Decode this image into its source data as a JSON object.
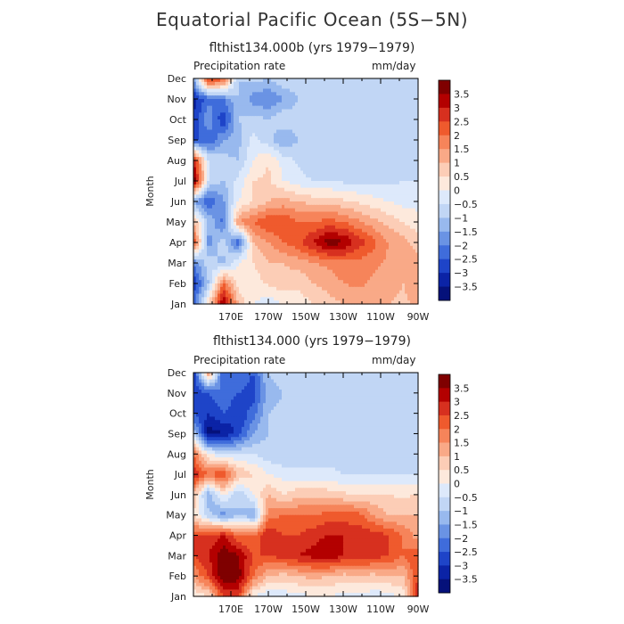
{
  "title": "Equatorial Pacific Ocean (5S−5N)",
  "colorbar": {
    "levels": [
      "3.5",
      "3",
      "2.5",
      "2",
      "1.5",
      "1",
      "0.5",
      "0",
      "−0.5",
      "−1",
      "−1.5",
      "−2",
      "−2.5",
      "−3",
      "−3.5"
    ],
    "colors": [
      "#7f0000",
      "#b30000",
      "#d7301f",
      "#ef5a2d",
      "#f6845a",
      "#f9a987",
      "#fccdb6",
      "#fde9dc",
      "#dde9fb",
      "#c1d6f5",
      "#98b9ee",
      "#6a93e4",
      "#3f6cdb",
      "#1e44c8",
      "#0b23a6",
      "#05117a"
    ]
  },
  "chart_data": [
    {
      "type": "heatmap",
      "subtitle": "flthist134.000b (yrs 1979−1979)",
      "left_label": "Precipitation rate",
      "right_label": "mm/day",
      "ylabel": "Month",
      "x_tick_labels": [
        "170E",
        "170W",
        "150W",
        "130W",
        "110W",
        "90W"
      ],
      "x_tick_values": [
        170,
        190,
        210,
        230,
        250,
        270
      ],
      "x_range": [
        150,
        270
      ],
      "y_tick_labels": [
        "Jan",
        "Feb",
        "Mar",
        "Apr",
        "May",
        "Jun",
        "Jul",
        "Aug",
        "Sep",
        "Oct",
        "Nov",
        "Dec"
      ],
      "y_range": [
        1,
        12
      ],
      "rows": [
        [
          -2.2,
          0.5,
          3.6,
          1.0,
          0.0,
          -0.3,
          0.0,
          0.2,
          0.5,
          0.8,
          1.0,
          1.2,
          1.2,
          1.0,
          0.9,
          1.1
        ],
        [
          -3.0,
          -1.0,
          2.0,
          0.2,
          0.2,
          0.6,
          0.8,
          0.6,
          1.0,
          1.2,
          1.5,
          1.6,
          1.4,
          1.2,
          1.0,
          1.4
        ],
        [
          -2.0,
          -0.6,
          -1.2,
          0.0,
          0.5,
          1.0,
          1.0,
          1.2,
          1.5,
          1.6,
          1.8,
          1.8,
          1.6,
          1.4,
          1.2,
          1.2
        ],
        [
          2.5,
          -1.8,
          -0.6,
          -2.4,
          1.0,
          1.5,
          2.0,
          2.4,
          3.0,
          3.8,
          3.6,
          2.8,
          2.2,
          1.5,
          1.2,
          0.8
        ],
        [
          1.0,
          -1.0,
          -2.2,
          1.5,
          2.0,
          2.5,
          2.5,
          2.0,
          2.0,
          2.2,
          2.0,
          1.6,
          1.2,
          0.8,
          0.5,
          0.2
        ],
        [
          -1.5,
          -2.5,
          -1.6,
          0.0,
          0.5,
          1.0,
          1.2,
          1.0,
          0.8,
          0.8,
          0.6,
          0.4,
          0.2,
          0.0,
          -0.2,
          -0.2
        ],
        [
          4.0,
          -0.5,
          -1.0,
          -0.3,
          0.5,
          0.6,
          0.0,
          -0.3,
          -0.5,
          -0.5,
          -0.6,
          -0.6,
          -0.6,
          -0.6,
          -0.5,
          -0.5
        ],
        [
          3.0,
          -0.5,
          -0.8,
          -1.0,
          0.0,
          0.5,
          -0.2,
          -0.6,
          -1.0,
          -0.8,
          -0.8,
          -0.8,
          -0.9,
          -0.8,
          -0.8,
          -0.8
        ],
        [
          -2.5,
          -2.5,
          -1.5,
          -1.2,
          -0.3,
          -0.8,
          -1.5,
          -1.0,
          -0.8,
          -1.0,
          -0.8,
          -0.7,
          -0.8,
          -0.7,
          -0.8,
          -0.7
        ],
        [
          -3.0,
          -1.5,
          -3.0,
          -1.0,
          -0.8,
          -1.0,
          -0.6,
          -0.8,
          -0.8,
          -0.8,
          -0.7,
          -0.8,
          -0.8,
          -0.8,
          -0.9,
          -0.8
        ],
        [
          -3.2,
          -2.2,
          -2.0,
          -1.0,
          -1.8,
          -2.0,
          -1.5,
          -1.0,
          -0.7,
          -1.0,
          -0.8,
          -0.8,
          -0.8,
          -0.9,
          -0.8,
          -0.8
        ],
        [
          -1.5,
          3.0,
          2.2,
          -1.0,
          -0.8,
          -1.0,
          -0.6,
          -0.7,
          -0.7,
          -0.8,
          -0.8,
          -0.9,
          -0.8,
          -0.8,
          -0.9,
          -0.8
        ]
      ]
    },
    {
      "type": "heatmap",
      "subtitle": "flthist134.000 (yrs 1979−1979)",
      "left_label": "Precipitation rate",
      "right_label": "mm/day",
      "ylabel": "Month",
      "x_tick_labels": [
        "170E",
        "170W",
        "150W",
        "130W",
        "110W",
        "90W"
      ],
      "x_tick_values": [
        170,
        190,
        210,
        230,
        250,
        270
      ],
      "x_range": [
        150,
        270
      ],
      "y_tick_labels": [
        "Jan",
        "Feb",
        "Mar",
        "Apr",
        "May",
        "Jun",
        "Jul",
        "Aug",
        "Sep",
        "Oct",
        "Nov",
        "Dec"
      ],
      "y_range": [
        1,
        12
      ],
      "rows": [
        [
          0.0,
          0.5,
          2.5,
          2.5,
          0.0,
          -0.5,
          -0.3,
          -0.2,
          0.0,
          0.0,
          -0.2,
          -0.2,
          -0.3,
          -0.3,
          0.2,
          3.0
        ],
        [
          1.5,
          2.5,
          4.0,
          3.8,
          2.0,
          1.0,
          0.8,
          1.0,
          1.2,
          1.0,
          0.8,
          1.0,
          0.8,
          1.0,
          1.0,
          2.5
        ],
        [
          2.5,
          3.0,
          4.0,
          3.5,
          2.5,
          2.5,
          2.8,
          3.0,
          3.2,
          3.5,
          3.0,
          3.0,
          2.8,
          2.5,
          2.0,
          2.5
        ],
        [
          2.5,
          2.5,
          3.0,
          2.0,
          2.0,
          3.0,
          2.5,
          2.5,
          2.8,
          3.0,
          3.0,
          2.8,
          2.8,
          2.5,
          2.0,
          1.2
        ],
        [
          0.5,
          -0.8,
          -1.8,
          -1.0,
          -1.5,
          1.8,
          2.0,
          2.0,
          2.0,
          2.2,
          2.2,
          2.2,
          1.5,
          1.0,
          1.0,
          1.0
        ],
        [
          1.0,
          -1.5,
          0.2,
          -1.0,
          0.0,
          1.0,
          0.5,
          0.8,
          0.8,
          0.8,
          0.6,
          0.5,
          0.5,
          0.5,
          0.4,
          0.5
        ],
        [
          3.0,
          2.0,
          2.5,
          1.0,
          0.5,
          0.0,
          -0.2,
          -0.3,
          -0.3,
          -0.4,
          -0.5,
          -0.5,
          -0.5,
          -0.5,
          -0.5,
          -0.5
        ],
        [
          2.0,
          0.0,
          -0.5,
          -0.5,
          -0.5,
          -0.8,
          -1.0,
          -0.8,
          -0.8,
          -0.7,
          -0.6,
          -0.7,
          -0.6,
          -0.7,
          -0.7,
          -0.7
        ],
        [
          -1.0,
          -3.8,
          -3.5,
          -2.8,
          -1.5,
          -1.0,
          -0.9,
          -0.8,
          -0.8,
          -0.9,
          -0.8,
          -0.8,
          -0.8,
          -0.8,
          -0.9,
          -0.8
        ],
        [
          -2.5,
          -3.0,
          -2.5,
          -3.0,
          -2.2,
          -1.0,
          -0.9,
          -0.8,
          -0.9,
          -0.8,
          -0.8,
          -0.9,
          -0.8,
          -0.9,
          -0.8,
          -0.8
        ],
        [
          -3.0,
          -2.5,
          -2.0,
          -2.5,
          -2.8,
          -1.2,
          -1.0,
          -0.9,
          -0.9,
          -1.0,
          -0.9,
          -0.8,
          -0.8,
          -0.8,
          -0.9,
          -0.8
        ],
        [
          -3.0,
          1.5,
          -2.5,
          -2.0,
          -2.5,
          -1.0,
          -0.8,
          -0.8,
          -0.8,
          -0.8,
          -0.8,
          -0.8,
          -0.8,
          -0.8,
          -0.8,
          -0.8
        ]
      ]
    }
  ]
}
